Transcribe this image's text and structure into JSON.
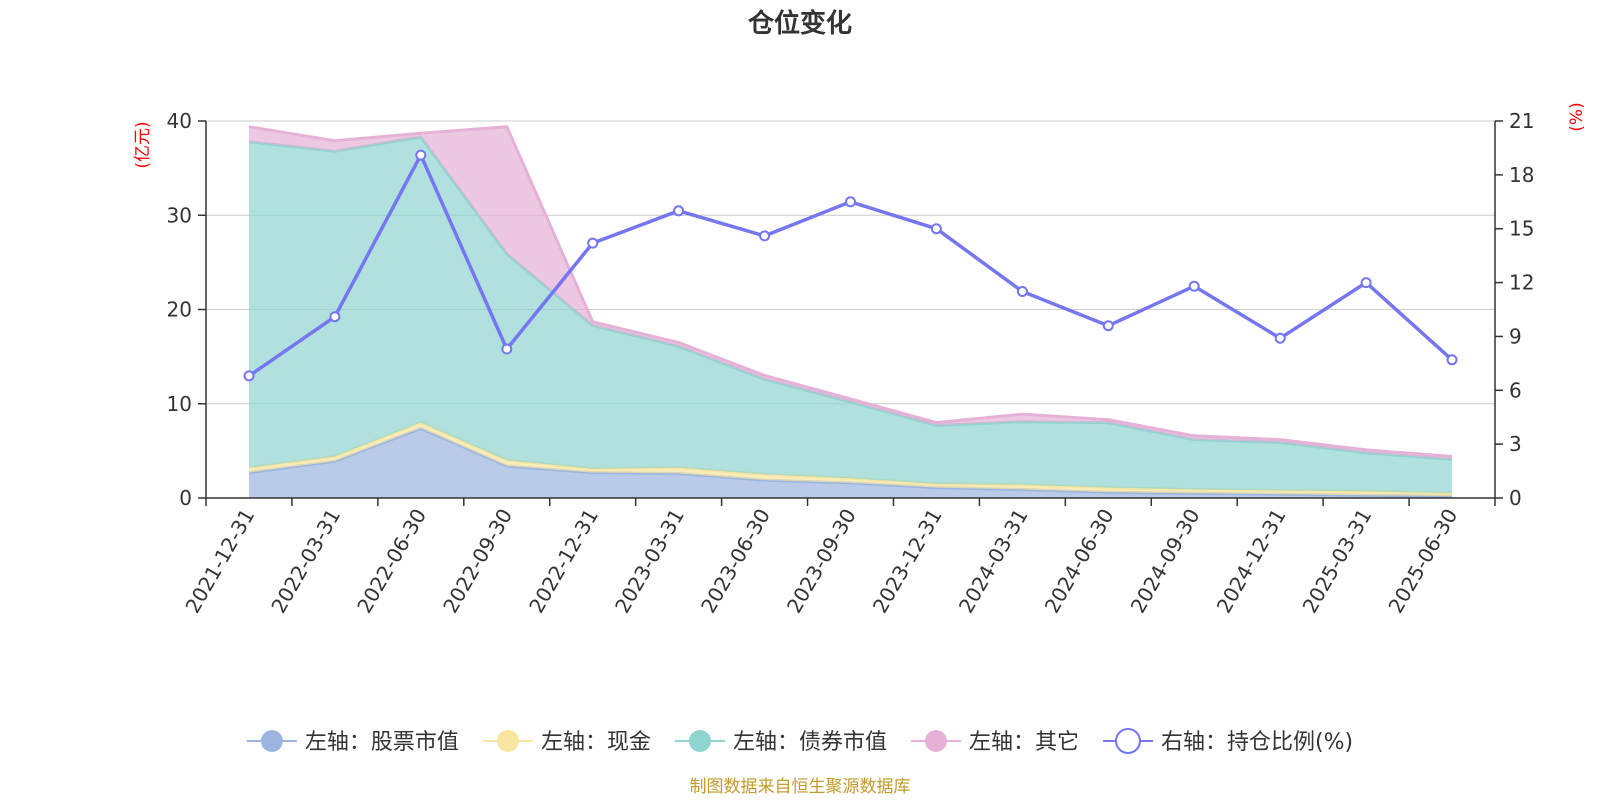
{
  "chart_data": {
    "type": "area",
    "title": "仓位变化",
    "left_axis_unit": "(亿元)",
    "right_axis_unit": "(%)",
    "left_axis": {
      "min": 0,
      "max": 40,
      "ticks": [
        0,
        10,
        20,
        30,
        40
      ]
    },
    "right_axis": {
      "min": 0,
      "max": 21,
      "ticks": [
        0,
        3,
        6,
        9,
        12,
        15,
        18,
        21
      ]
    },
    "categories": [
      "2021-12-31",
      "2022-03-31",
      "2022-06-30",
      "2022-09-30",
      "2022-12-31",
      "2023-03-31",
      "2023-06-30",
      "2023-09-30",
      "2023-12-31",
      "2024-03-31",
      "2024-06-30",
      "2024-09-30",
      "2024-12-31",
      "2025-03-31",
      "2025-06-30"
    ],
    "stacked_series": [
      {
        "name": "左轴：股票市值",
        "color": "#9bb5e0",
        "values": [
          2.7,
          3.9,
          7.4,
          3.4,
          2.7,
          2.6,
          1.9,
          1.6,
          1.1,
          0.9,
          0.6,
          0.5,
          0.4,
          0.3,
          0.2
        ]
      },
      {
        "name": "左轴：现金",
        "color": "#f7e5a0",
        "values": [
          0.5,
          0.5,
          0.6,
          0.6,
          0.4,
          0.6,
          0.6,
          0.5,
          0.4,
          0.5,
          0.5,
          0.4,
          0.4,
          0.4,
          0.3
        ]
      },
      {
        "name": "左轴：债券市值",
        "color": "#8fd4d0",
        "values": [
          34.6,
          32.4,
          30.3,
          21.9,
          15.2,
          12.9,
          10.1,
          8.1,
          6.2,
          6.7,
          6.9,
          5.3,
          5.1,
          4.1,
          3.6
        ]
      },
      {
        "name": "左轴：其它",
        "color": "#e6b1d7",
        "values": [
          1.6,
          1.1,
          0.4,
          13.5,
          0.4,
          0.4,
          0.4,
          0.3,
          0.3,
          0.8,
          0.3,
          0.4,
          0.3,
          0.3,
          0.3
        ]
      }
    ],
    "line_series": {
      "name": "右轴：持仓比例(%)",
      "color": "#7576f0",
      "axis": "right",
      "values": [
        6.8,
        10.1,
        19.1,
        8.3,
        14.2,
        16.0,
        14.6,
        16.5,
        15.0,
        11.5,
        9.6,
        11.8,
        8.9,
        12.0,
        7.7
      ]
    },
    "grid": true,
    "legend_position": "bottom"
  },
  "source_note": "制图数据来自恒生聚源数据库",
  "source_color": "#c49a2b"
}
